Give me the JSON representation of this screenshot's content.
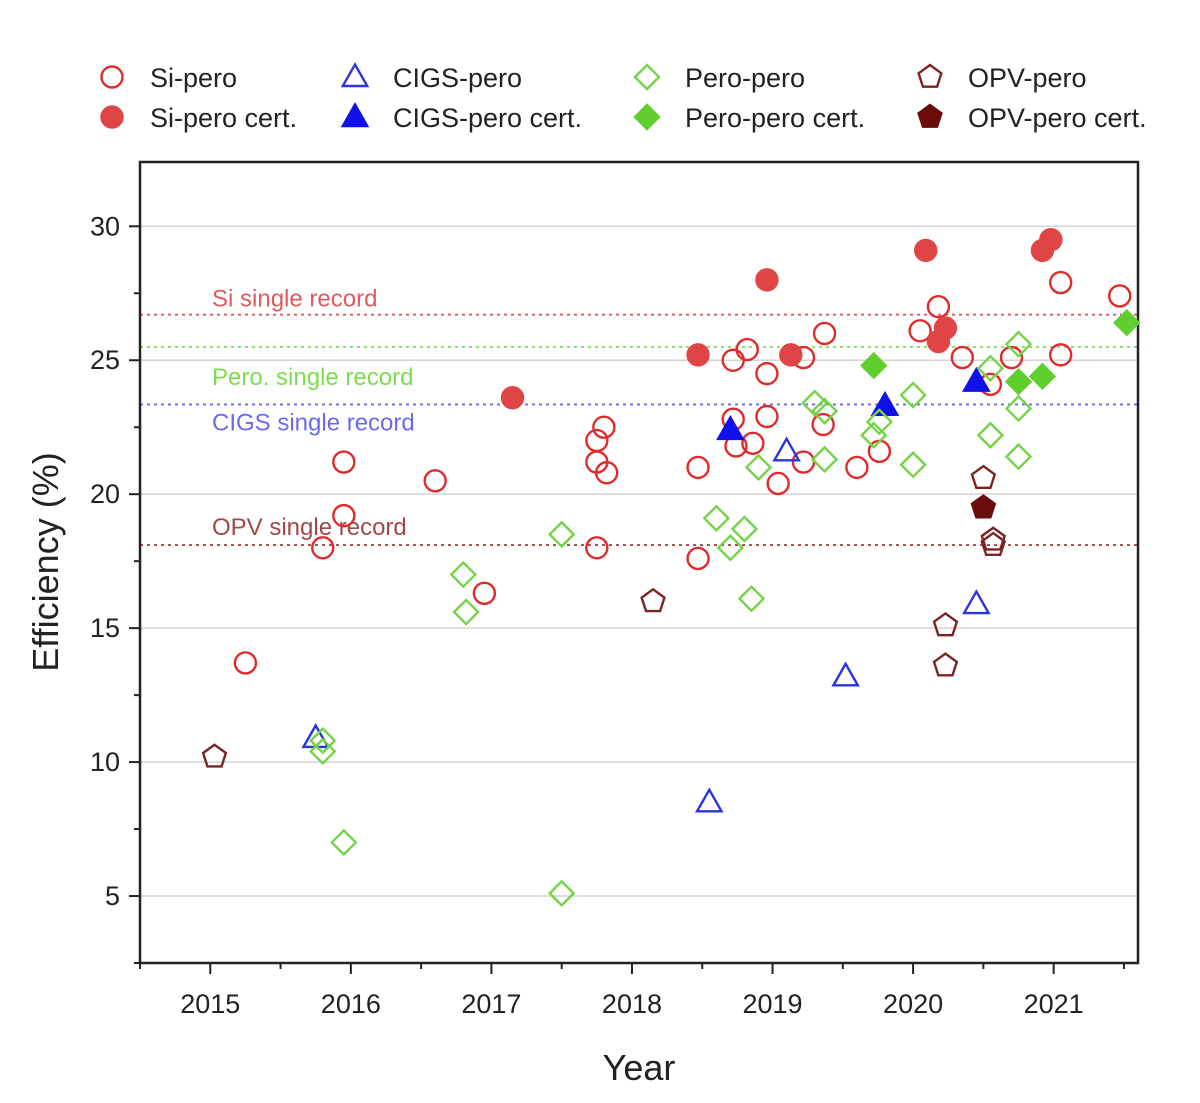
{
  "chart_data": {
    "type": "scatter",
    "xlabel": "Year",
    "ylabel": "Efficiency (%)",
    "xlim": [
      2014.5,
      2021.6
    ],
    "ylim": [
      2.5,
      32.4
    ],
    "x_ticks": [
      2015,
      2016,
      2017,
      2018,
      2019,
      2020,
      2021
    ],
    "x_tick_labels": [
      "2015",
      "2016",
      "2017",
      "2018",
      "2019",
      "2020",
      "2021"
    ],
    "y_ticks": [
      5,
      10,
      15,
      20,
      25,
      30
    ],
    "y_tick_labels": [
      "5",
      "10",
      "15",
      "20",
      "25",
      "30"
    ],
    "grid": "horizontal",
    "legend_position": "top",
    "reference_lines": [
      {
        "label": "Si single record",
        "value": 26.7,
        "color": "#e0595e"
      },
      {
        "label": "Pero. single record",
        "value": 25.5,
        "color": "#7ddc4f"
      },
      {
        "label": "CIGS single record",
        "value": 23.35,
        "color": "#6a6af0"
      },
      {
        "label": "OPV single record",
        "value": 18.1,
        "color": "#a04848"
      }
    ],
    "series": [
      {
        "name": "Si-pero",
        "marker": "circle",
        "filled": false,
        "color": "#e02b2b",
        "points": [
          [
            2015.25,
            13.7
          ],
          [
            2015.8,
            18.0
          ],
          [
            2015.95,
            19.2
          ],
          [
            2015.95,
            21.2
          ],
          [
            2016.6,
            20.5
          ],
          [
            2016.95,
            16.3
          ],
          [
            2017.75,
            18.0
          ],
          [
            2017.75,
            21.2
          ],
          [
            2017.75,
            22.0
          ],
          [
            2017.8,
            22.5
          ],
          [
            2017.82,
            20.8
          ],
          [
            2018.47,
            21.0
          ],
          [
            2018.47,
            17.6
          ],
          [
            2018.72,
            25.0
          ],
          [
            2018.72,
            22.8
          ],
          [
            2018.74,
            21.8
          ],
          [
            2018.82,
            25.4
          ],
          [
            2018.86,
            21.9
          ],
          [
            2018.96,
            24.5
          ],
          [
            2018.96,
            22.9
          ],
          [
            2019.04,
            20.4
          ],
          [
            2019.22,
            25.1
          ],
          [
            2019.22,
            21.2
          ],
          [
            2019.36,
            22.6
          ],
          [
            2019.37,
            26.0
          ],
          [
            2019.6,
            21.0
          ],
          [
            2019.76,
            21.6
          ],
          [
            2020.05,
            26.1
          ],
          [
            2020.18,
            27.0
          ],
          [
            2020.35,
            25.1
          ],
          [
            2020.55,
            24.1
          ],
          [
            2020.7,
            25.1
          ],
          [
            2021.05,
            25.2
          ],
          [
            2021.05,
            27.9
          ],
          [
            2021.47,
            27.4
          ]
        ]
      },
      {
        "name": "Si-pero cert.",
        "marker": "circle",
        "filled": true,
        "color": "#e04545",
        "points": [
          [
            2017.15,
            23.6
          ],
          [
            2018.47,
            25.2
          ],
          [
            2018.96,
            28.0
          ],
          [
            2019.13,
            25.2
          ],
          [
            2020.09,
            29.1
          ],
          [
            2020.18,
            25.7
          ],
          [
            2020.23,
            26.2
          ],
          [
            2020.92,
            29.1
          ],
          [
            2020.98,
            29.5
          ]
        ]
      },
      {
        "name": "CIGS-pero",
        "marker": "triangle",
        "filled": false,
        "color": "#2a35e0",
        "points": [
          [
            2015.75,
            10.9
          ],
          [
            2018.55,
            8.5
          ],
          [
            2019.1,
            21.6
          ],
          [
            2019.52,
            13.2
          ],
          [
            2020.45,
            15.9
          ]
        ]
      },
      {
        "name": "CIGS-pero cert.",
        "marker": "triangle",
        "filled": true,
        "color": "#1010e8",
        "points": [
          [
            2018.7,
            22.4
          ],
          [
            2019.8,
            23.3
          ],
          [
            2020.45,
            24.2
          ]
        ]
      },
      {
        "name": "Pero-pero",
        "marker": "diamond",
        "filled": false,
        "color": "#74d448",
        "points": [
          [
            2015.8,
            10.8
          ],
          [
            2015.8,
            10.4
          ],
          [
            2015.95,
            7.0
          ],
          [
            2016.8,
            17.0
          ],
          [
            2016.82,
            15.6
          ],
          [
            2017.5,
            18.5
          ],
          [
            2017.5,
            5.1
          ],
          [
            2018.6,
            19.1
          ],
          [
            2018.7,
            18.0
          ],
          [
            2018.8,
            18.7
          ],
          [
            2018.85,
            16.1
          ],
          [
            2018.9,
            21.0
          ],
          [
            2019.3,
            23.4
          ],
          [
            2019.37,
            23.1
          ],
          [
            2019.37,
            21.3
          ],
          [
            2019.72,
            22.2
          ],
          [
            2019.76,
            22.7
          ],
          [
            2020.0,
            23.7
          ],
          [
            2020.0,
            21.1
          ],
          [
            2020.55,
            24.7
          ],
          [
            2020.55,
            22.2
          ],
          [
            2020.75,
            25.6
          ],
          [
            2020.75,
            23.2
          ],
          [
            2020.75,
            21.4
          ]
        ]
      },
      {
        "name": "Pero-pero cert.",
        "marker": "diamond",
        "filled": true,
        "color": "#5fcf30",
        "points": [
          [
            2019.72,
            24.8
          ],
          [
            2020.75,
            24.2
          ],
          [
            2020.92,
            24.4
          ],
          [
            2021.52,
            26.4
          ]
        ]
      },
      {
        "name": "OPV-pero",
        "marker": "pentagon",
        "filled": false,
        "color": "#7a2424",
        "points": [
          [
            2015.03,
            10.2
          ],
          [
            2018.15,
            16.0
          ],
          [
            2020.23,
            15.1
          ],
          [
            2020.23,
            13.6
          ],
          [
            2020.5,
            20.6
          ],
          [
            2020.57,
            18.3
          ],
          [
            2020.57,
            18.1
          ]
        ]
      },
      {
        "name": "OPV-pero cert.",
        "marker": "pentagon",
        "filled": true,
        "color": "#6a0c0c",
        "points": [
          [
            2020.5,
            19.5
          ]
        ]
      }
    ]
  }
}
